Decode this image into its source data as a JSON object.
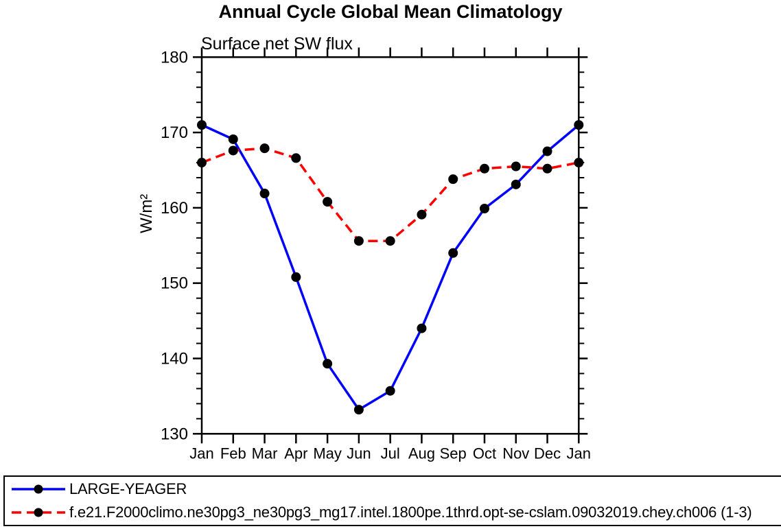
{
  "chart_data": {
    "type": "line",
    "title": "Annual Cycle Global Mean Climatology",
    "subtitle": "Surface net SW flux",
    "ylabel": "W/m²",
    "x_tick_labels": [
      "Jan",
      "Feb",
      "Mar",
      "Apr",
      "May",
      "Jun",
      "Jul",
      "Aug",
      "Sep",
      "Oct",
      "Nov",
      "Dec",
      "Jan"
    ],
    "ylim": [
      130,
      180
    ],
    "y_major_ticks": [
      130,
      140,
      150,
      160,
      170,
      180
    ],
    "y_minor_step": 2,
    "grid": false,
    "legend_position": "bottom",
    "frame_color": "#000000",
    "series": [
      {
        "name": "LARGE-YEAGER",
        "color": "#0000ff",
        "style": "solid",
        "dash_pattern": "",
        "marker": "circle",
        "marker_color": "#000000",
        "values": [
          171.0,
          169.1,
          161.9,
          150.8,
          139.3,
          133.2,
          135.7,
          144.0,
          154.0,
          159.9,
          163.1,
          167.5,
          171.0
        ]
      },
      {
        "name": "f.e21.F2000climo.ne30pg3_ne30pg3_mg17.intel.1800pe.1thrd.opt-se-cslam.09032019.chey.ch006 (1-3)",
        "color": "#ff0000",
        "style": "dashed",
        "dash_pattern": "14 8",
        "marker": "circle",
        "marker_color": "#000000",
        "values": [
          166.0,
          167.6,
          167.9,
          166.6,
          160.8,
          155.6,
          155.6,
          159.1,
          163.8,
          165.2,
          165.5,
          165.2,
          166.0
        ]
      }
    ]
  }
}
